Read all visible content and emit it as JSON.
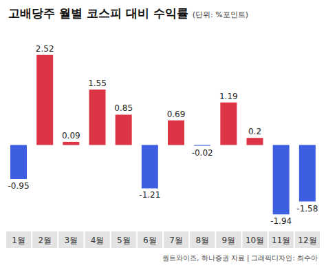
{
  "chart_data": {
    "type": "bar",
    "title": "고배당주 월별 코스피 대비 수익률",
    "subtitle": "(단위: %포인트)",
    "source": "퀀트와이즈, 하나증권 자료 | 그래픽디자인: 최수아",
    "categories": [
      "1월",
      "2월",
      "3월",
      "4월",
      "5월",
      "6월",
      "7월",
      "8월",
      "9월",
      "10월",
      "11월",
      "12월"
    ],
    "values": [
      -0.95,
      2.52,
      0.09,
      1.55,
      0.85,
      -1.21,
      0.69,
      -0.02,
      1.19,
      0.2,
      -1.94,
      -1.58
    ],
    "colors": [
      "#3d5ee0",
      "#dc3545",
      "#dc3545",
      "#dc3545",
      "#dc3545",
      "#3d5ee0",
      "#dc3545",
      "#3d5ee0",
      "#dc3545",
      "#dc3545",
      "#3d5ee0",
      "#3d5ee0"
    ],
    "ylim": [
      -2.3,
      2.9
    ],
    "data_labels": true,
    "tick_labels": "x",
    "grid": false
  }
}
